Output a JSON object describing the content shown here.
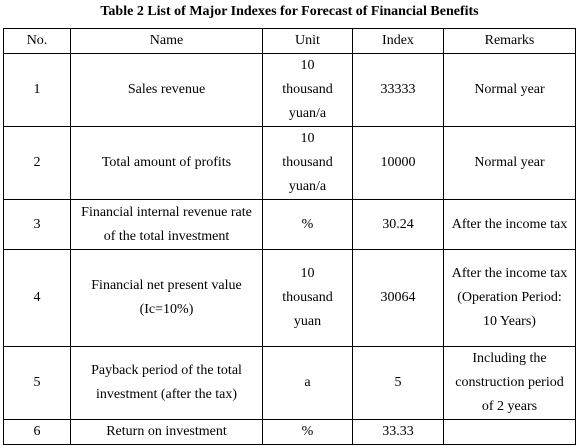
{
  "header": {
    "title": "Table 2 List of Major Indexes for Forecast of Financial Benefits"
  },
  "table": {
    "columns": [
      "No.",
      "Name",
      "Unit",
      "Index",
      "Remarks"
    ],
    "rows": [
      [
        "1",
        "Sales revenue",
        "10 thousand yuan/a",
        "33333",
        "Normal year"
      ],
      [
        "2",
        "Total amount of profits",
        "10 thousand yuan/a",
        "10000",
        "Normal year"
      ],
      [
        "3",
        "Financial internal revenue rate of the total investment",
        "%",
        "30.24",
        "After the income tax"
      ],
      [
        "4",
        "Financial net present value (Ic=10%)",
        "10 thousand yuan",
        "30064",
        "After the income tax (Operation Period: 10 Years)"
      ],
      [
        "5",
        "Payback period of the total investment (after the tax)",
        "a",
        "5",
        "Including the construction period of 2 years"
      ],
      [
        "6",
        "Return on investment",
        "%",
        "33.33",
        ""
      ]
    ]
  }
}
